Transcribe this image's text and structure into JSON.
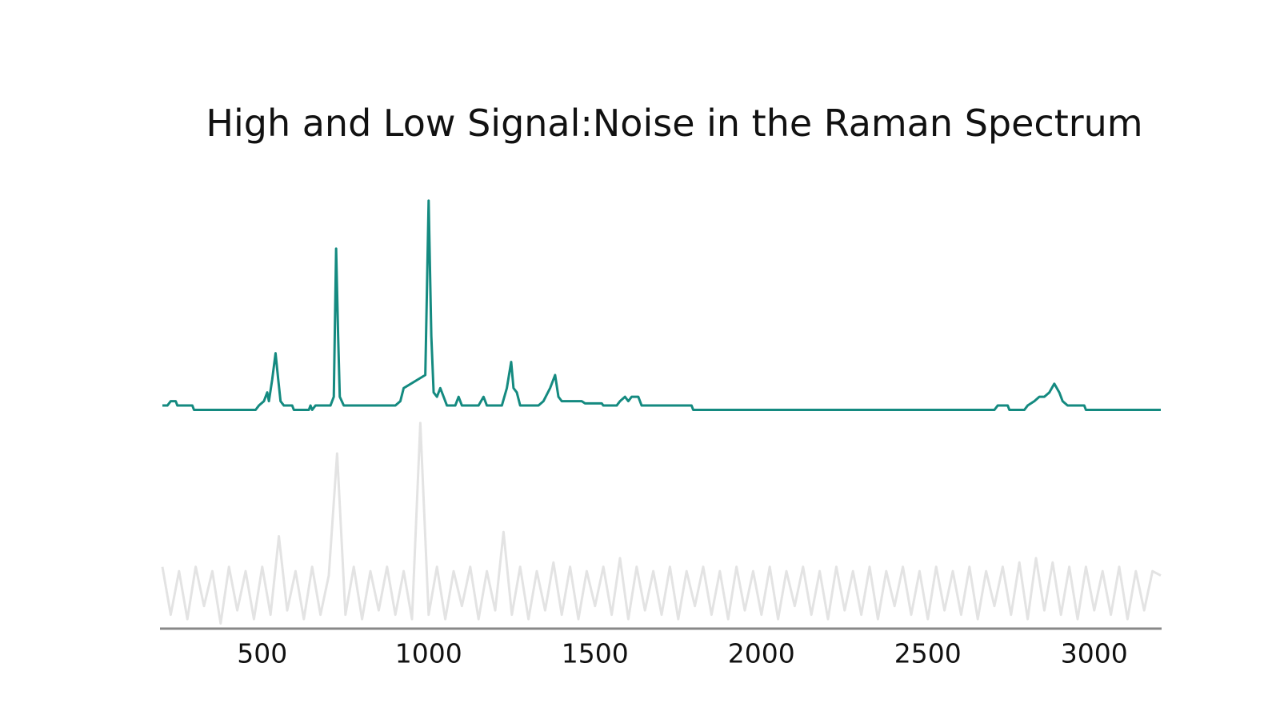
{
  "chart_data": {
    "type": "line",
    "title": "High and Low Signal:Noise in the Raman Spectrum",
    "xlim": [
      200,
      3200
    ],
    "ylim": [
      0,
      100
    ],
    "xticks": [
      500,
      1000,
      1500,
      2000,
      2500,
      3000
    ],
    "series": [
      {
        "color": "#148a80",
        "x": [
          200,
          215,
          225,
          240,
          245,
          290,
          295,
          480,
          490,
          505,
          515,
          520,
          530,
          540,
          548,
          555,
          565,
          590,
          595,
          640,
          645,
          650,
          660,
          705,
          715,
          722,
          728,
          733,
          745,
          750,
          900,
          915,
          925,
          990,
          1000,
          1008,
          1015,
          1025,
          1035,
          1045,
          1055,
          1080,
          1090,
          1100,
          1150,
          1165,
          1175,
          1220,
          1235,
          1248,
          1255,
          1265,
          1275,
          1330,
          1345,
          1365,
          1380,
          1390,
          1400,
          1460,
          1470,
          1520,
          1525,
          1565,
          1575,
          1590,
          1600,
          1610,
          1630,
          1640,
          1790,
          1795,
          2700,
          2710,
          2740,
          2745,
          2790,
          2800,
          2820,
          2835,
          2850,
          2865,
          2880,
          2895,
          2905,
          2920,
          2970,
          2975,
          3200
        ],
        "values": [
          51,
          51,
          52,
          52,
          51,
          51,
          50,
          50,
          51,
          52,
          54,
          52,
          57,
          63,
          57,
          52,
          51,
          51,
          50,
          50,
          51,
          50,
          51,
          51,
          53,
          87,
          67,
          53,
          51,
          51,
          51,
          52,
          55,
          58,
          98,
          67,
          54,
          53,
          55,
          53,
          51,
          51,
          53,
          51,
          51,
          53,
          51,
          51,
          55,
          61,
          55,
          54,
          51,
          51,
          52,
          55,
          58,
          53,
          52,
          52,
          51.5,
          51.5,
          51,
          51,
          52,
          53,
          52,
          53,
          53,
          51,
          51,
          50,
          50,
          51,
          51,
          50,
          50,
          51,
          52,
          53,
          53,
          54,
          56,
          54,
          52,
          51,
          51,
          50,
          50
        ]
      },
      {
        "color": "#e3e3e3",
        "x": [
          200,
          225,
          250,
          275,
          300,
          325,
          350,
          375,
          400,
          425,
          450,
          475,
          500,
          525,
          550,
          575,
          600,
          625,
          650,
          675,
          700,
          725,
          750,
          775,
          800,
          825,
          850,
          875,
          900,
          925,
          950,
          975,
          1000,
          1025,
          1050,
          1075,
          1100,
          1125,
          1150,
          1175,
          1200,
          1225,
          1250,
          1275,
          1300,
          1325,
          1350,
          1375,
          1400,
          1425,
          1450,
          1475,
          1500,
          1525,
          1550,
          1575,
          1600,
          1625,
          1650,
          1675,
          1700,
          1725,
          1750,
          1775,
          1800,
          1825,
          1850,
          1875,
          1900,
          1925,
          1950,
          1975,
          2000,
          2025,
          2050,
          2075,
          2100,
          2125,
          2150,
          2175,
          2200,
          2225,
          2250,
          2275,
          2300,
          2325,
          2350,
          2375,
          2400,
          2425,
          2450,
          2475,
          2500,
          2525,
          2550,
          2575,
          2600,
          2625,
          2650,
          2675,
          2700,
          2725,
          2750,
          2775,
          2800,
          2825,
          2850,
          2875,
          2900,
          2925,
          2950,
          2975,
          3000,
          3025,
          3050,
          3075,
          3100,
          3125,
          3150,
          3175,
          3200
        ],
        "values": [
          14,
          3,
          13,
          2,
          14,
          5,
          13,
          1,
          14,
          4,
          13,
          2,
          14,
          3,
          21,
          4,
          13,
          2,
          14,
          3,
          12,
          40,
          3,
          14,
          2,
          13,
          4,
          14,
          3,
          13,
          2,
          47,
          3,
          14,
          2,
          13,
          5,
          14,
          2,
          13,
          4,
          22,
          3,
          14,
          2,
          13,
          4,
          15,
          3,
          14,
          2,
          13,
          5,
          14,
          3,
          16,
          2,
          14,
          4,
          13,
          3,
          14,
          2,
          13,
          5,
          14,
          3,
          13,
          2,
          14,
          4,
          13,
          3,
          14,
          2,
          13,
          5,
          14,
          3,
          13,
          2,
          14,
          4,
          13,
          3,
          14,
          2,
          13,
          5,
          14,
          3,
          13,
          2,
          14,
          4,
          13,
          3,
          14,
          2,
          13,
          5,
          14,
          3,
          15,
          2,
          16,
          4,
          15,
          3,
          14,
          2,
          14,
          4,
          13,
          3,
          14,
          2,
          13,
          4,
          13,
          12
        ]
      }
    ]
  }
}
